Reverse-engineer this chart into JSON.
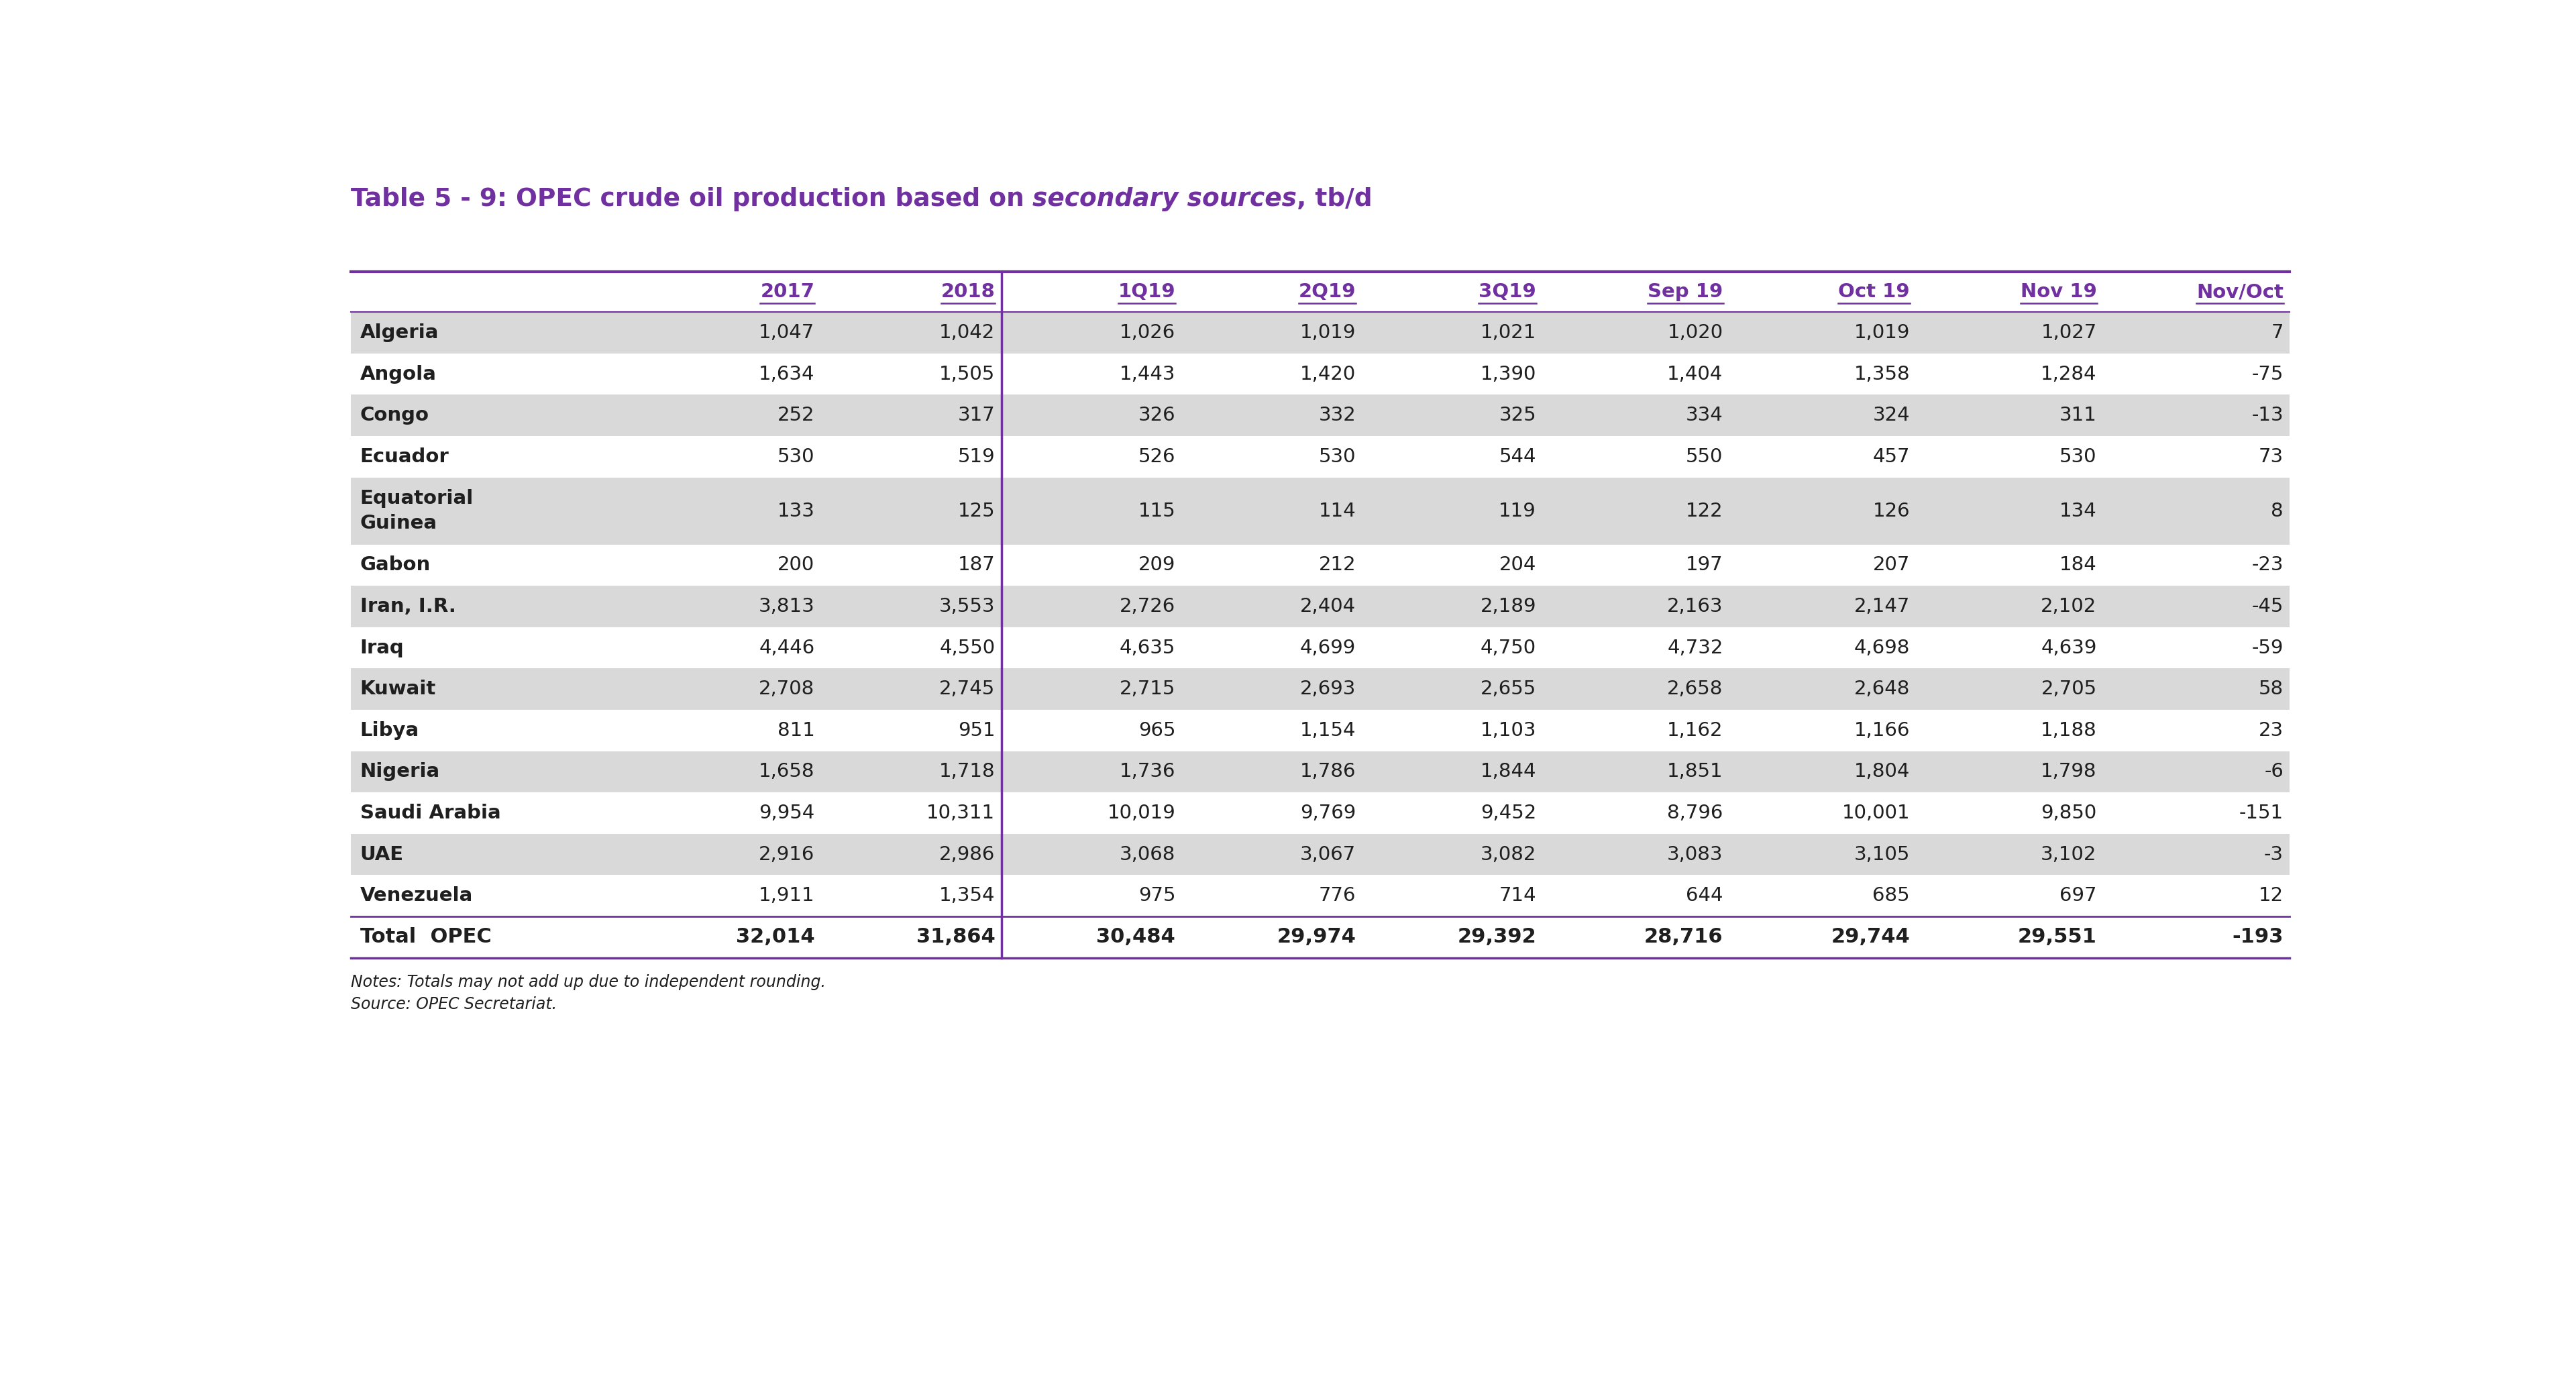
{
  "title_parts": [
    {
      "text": "Table 5 - 9: OPEC crude oil production based on ",
      "italic": false
    },
    {
      "text": "secondary sources",
      "italic": true
    },
    {
      "text": ", tb/d",
      "italic": false
    }
  ],
  "title_color": "#7030A0",
  "header_color": "#7030A0",
  "columns": [
    "",
    "2017",
    "2018",
    "1Q19",
    "2Q19",
    "3Q19",
    "Sep 19",
    "Oct 19",
    "Nov 19",
    "Nov/Oct"
  ],
  "rows": [
    [
      "Algeria",
      "1,047",
      "1,042",
      "1,026",
      "1,019",
      "1,021",
      "1,020",
      "1,019",
      "1,027",
      "7"
    ],
    [
      "Angola",
      "1,634",
      "1,505",
      "1,443",
      "1,420",
      "1,390",
      "1,404",
      "1,358",
      "1,284",
      "-75"
    ],
    [
      "Congo",
      "252",
      "317",
      "326",
      "332",
      "325",
      "334",
      "324",
      "311",
      "-13"
    ],
    [
      "Ecuador",
      "530",
      "519",
      "526",
      "530",
      "544",
      "550",
      "457",
      "530",
      "73"
    ],
    [
      "Equatorial\nGuinea",
      "133",
      "125",
      "115",
      "114",
      "119",
      "122",
      "126",
      "134",
      "8"
    ],
    [
      "Gabon",
      "200",
      "187",
      "209",
      "212",
      "204",
      "197",
      "207",
      "184",
      "-23"
    ],
    [
      "Iran, I.R.",
      "3,813",
      "3,553",
      "2,726",
      "2,404",
      "2,189",
      "2,163",
      "2,147",
      "2,102",
      "-45"
    ],
    [
      "Iraq",
      "4,446",
      "4,550",
      "4,635",
      "4,699",
      "4,750",
      "4,732",
      "4,698",
      "4,639",
      "-59"
    ],
    [
      "Kuwait",
      "2,708",
      "2,745",
      "2,715",
      "2,693",
      "2,655",
      "2,658",
      "2,648",
      "2,705",
      "58"
    ],
    [
      "Libya",
      "811",
      "951",
      "965",
      "1,154",
      "1,103",
      "1,162",
      "1,166",
      "1,188",
      "23"
    ],
    [
      "Nigeria",
      "1,658",
      "1,718",
      "1,736",
      "1,786",
      "1,844",
      "1,851",
      "1,804",
      "1,798",
      "-6"
    ],
    [
      "Saudi Arabia",
      "9,954",
      "10,311",
      "10,019",
      "9,769",
      "9,452",
      "8,796",
      "10,001",
      "9,850",
      "-151"
    ],
    [
      "UAE",
      "2,916",
      "2,986",
      "3,068",
      "3,067",
      "3,082",
      "3,083",
      "3,105",
      "3,102",
      "-3"
    ],
    [
      "Venezuela",
      "1,911",
      "1,354",
      "975",
      "776",
      "714",
      "644",
      "685",
      "697",
      "12"
    ]
  ],
  "total_row": [
    "Total  OPEC",
    "32,014",
    "31,864",
    "30,484",
    "29,974",
    "29,392",
    "28,716",
    "29,744",
    "29,551",
    "-193"
  ],
  "notes": [
    "Notes: Totals may not add up due to independent rounding.",
    "Source: OPEC Secretariat."
  ],
  "bg_color_odd": "#D9D9D9",
  "bg_color_even": "#FFFFFF",
  "border_color": "#7030A0",
  "text_color": "#1F1F1F"
}
